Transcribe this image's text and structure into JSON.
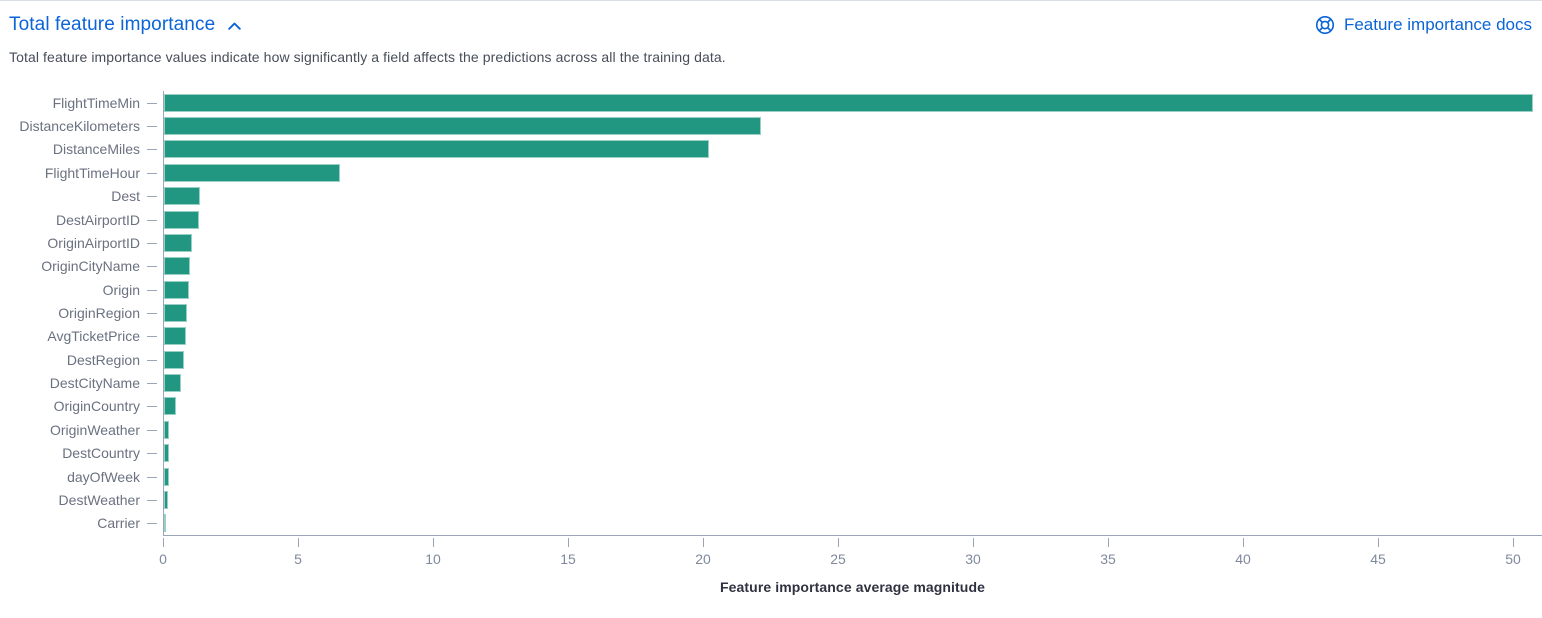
{
  "panel": {
    "title": "Total feature importance",
    "subtitle": "Total feature importance values indicate how significantly a field affects the predictions across all the training data.",
    "docs_link_label": "Feature importance docs",
    "accent_color": "#0b64d8",
    "collapse_state": "expanded"
  },
  "chart_data": {
    "type": "bar",
    "orientation": "horizontal",
    "title": "",
    "categories": [
      "FlightTimeMin",
      "DistanceKilometers",
      "DistanceMiles",
      "FlightTimeHour",
      "Dest",
      "DestAirportID",
      "OriginAirportID",
      "OriginCityName",
      "Origin",
      "OriginRegion",
      "AvgTicketPrice",
      "DestRegion",
      "DestCityName",
      "OriginCountry",
      "OriginWeather",
      "DestCountry",
      "dayOfWeek",
      "DestWeather",
      "Carrier"
    ],
    "values": [
      50.7,
      22.1,
      20.2,
      6.5,
      1.35,
      1.3,
      1.05,
      0.97,
      0.93,
      0.86,
      0.8,
      0.73,
      0.63,
      0.43,
      0.19,
      0.18,
      0.17,
      0.13,
      0.05
    ],
    "xlabel": "Feature importance average magnitude",
    "ylabel": "",
    "x_ticks": [
      0,
      5,
      10,
      15,
      20,
      25,
      30,
      35,
      40,
      45,
      50
    ],
    "xlim": [
      0,
      51
    ],
    "bar_color": "#219681",
    "grid": false,
    "legend": "none"
  }
}
